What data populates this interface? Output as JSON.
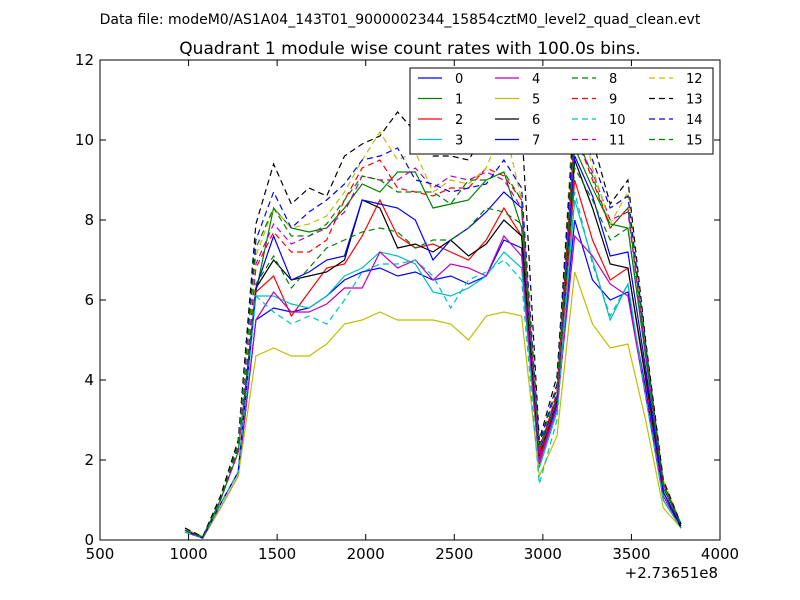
{
  "header": {
    "datafile": "Data file: modeM0/AS1A04_143T01_9000002344_15854cztM0_level2_quad_clean.evt",
    "title": "Quadrant 1 module wise count rates with 100.0s bins."
  },
  "chart_data": {
    "type": "line",
    "title": "Quadrant 1 module wise count rates with 100.0s bins.",
    "xlabel": "",
    "ylabel": "",
    "x_offset_label": "+2.73651e8",
    "xlim": [
      500,
      4000
    ],
    "ylim": [
      0,
      12
    ],
    "xticks": [
      500,
      1000,
      1500,
      2000,
      2500,
      3000,
      3500,
      4000
    ],
    "yticks": [
      0,
      2,
      4,
      6,
      8,
      10,
      12
    ],
    "grid": false,
    "legend": {
      "placement": "top-right",
      "columns": 4
    },
    "x": [
      980,
      1080,
      1180,
      1280,
      1380,
      1480,
      1580,
      1680,
      1780,
      1880,
      1980,
      2080,
      2180,
      2280,
      2380,
      2480,
      2580,
      2680,
      2780,
      2880,
      2980,
      3080,
      3180,
      3280,
      3380,
      3480,
      3580,
      3680,
      3780
    ],
    "series": [
      {
        "name": "0",
        "color": "#0000ff",
        "dash": "solid",
        "values": [
          0.2,
          0.05,
          0.8,
          1.6,
          5.5,
          5.8,
          5.7,
          5.8,
          6.1,
          6.5,
          6.7,
          6.8,
          6.6,
          6.7,
          6.5,
          6.6,
          6.4,
          6.6,
          7.5,
          7.3,
          2.0,
          3.4,
          8.0,
          6.5,
          6.0,
          6.2,
          3.8,
          1.0,
          0.3
        ]
      },
      {
        "name": "1",
        "color": "#008000",
        "dash": "solid",
        "values": [
          0.25,
          0.08,
          1.0,
          2.2,
          6.2,
          8.3,
          7.8,
          7.7,
          7.8,
          8.3,
          8.9,
          8.7,
          9.2,
          9.2,
          8.3,
          8.4,
          8.5,
          9.0,
          9.2,
          7.8,
          2.3,
          3.6,
          9.8,
          8.8,
          7.9,
          7.8,
          4.6,
          1.3,
          0.4
        ]
      },
      {
        "name": "2",
        "color": "#ff0000",
        "dash": "solid",
        "values": [
          0.2,
          0.05,
          0.9,
          1.7,
          6.2,
          6.6,
          5.6,
          6.2,
          6.8,
          6.9,
          7.6,
          8.5,
          7.6,
          7.3,
          7.4,
          7.2,
          7.0,
          7.5,
          8.3,
          7.6,
          2.0,
          3.5,
          9.0,
          7.5,
          6.5,
          6.8,
          4.0,
          1.2,
          0.3
        ]
      },
      {
        "name": "3",
        "color": "#00bfbf",
        "dash": "solid",
        "values": [
          0.2,
          0.05,
          0.8,
          1.6,
          6.1,
          6.1,
          5.9,
          5.8,
          6.1,
          6.6,
          6.8,
          7.2,
          7.1,
          6.9,
          6.2,
          6.1,
          6.3,
          6.6,
          7.2,
          6.8,
          1.8,
          3.2,
          8.5,
          7.0,
          5.5,
          6.4,
          3.6,
          1.0,
          0.3
        ]
      },
      {
        "name": "4",
        "color": "#bf00bf",
        "dash": "solid",
        "values": [
          0.2,
          0.05,
          0.8,
          1.6,
          5.5,
          6.2,
          5.7,
          5.7,
          5.9,
          6.3,
          6.3,
          7.2,
          6.8,
          7.0,
          6.5,
          6.9,
          6.8,
          6.6,
          7.6,
          7.1,
          1.9,
          3.3,
          7.6,
          7.1,
          6.4,
          6.1,
          3.6,
          1.1,
          0.3
        ]
      },
      {
        "name": "5",
        "color": "#bfbf00",
        "dash": "solid",
        "values": [
          0.3,
          0.05,
          0.8,
          1.6,
          4.6,
          4.8,
          4.6,
          4.6,
          4.9,
          5.4,
          5.5,
          5.7,
          5.5,
          5.5,
          5.5,
          5.4,
          5.0,
          5.6,
          5.7,
          5.6,
          1.6,
          2.6,
          6.7,
          5.4,
          4.8,
          4.9,
          3.0,
          0.8,
          0.3
        ]
      },
      {
        "name": "6",
        "color": "#000000",
        "dash": "solid",
        "values": [
          0.25,
          0.05,
          0.9,
          1.7,
          6.3,
          7.0,
          6.5,
          6.6,
          6.7,
          7.0,
          8.5,
          8.3,
          7.3,
          7.4,
          7.2,
          7.5,
          7.1,
          7.4,
          8.0,
          7.6,
          2.1,
          3.5,
          9.5,
          8.3,
          6.9,
          6.8,
          4.1,
          1.2,
          0.3
        ]
      },
      {
        "name": "7",
        "color": "#0000ff",
        "dash": "solid",
        "values": [
          0.25,
          0.05,
          0.9,
          1.7,
          6.3,
          7.6,
          6.5,
          6.7,
          7.0,
          7.1,
          8.5,
          8.4,
          8.3,
          8.0,
          7.0,
          7.5,
          7.8,
          8.2,
          8.7,
          8.3,
          2.2,
          3.6,
          9.6,
          8.6,
          7.1,
          7.2,
          4.3,
          1.2,
          0.35
        ]
      },
      {
        "name": "8",
        "color": "#008000",
        "dash": "dashed",
        "values": [
          0.25,
          0.05,
          1.0,
          2.3,
          6.4,
          7.1,
          6.3,
          6.8,
          7.3,
          7.5,
          7.7,
          7.8,
          7.7,
          7.3,
          7.5,
          7.5,
          7.8,
          8.3,
          8.2,
          7.9,
          2.2,
          3.5,
          9.3,
          8.5,
          7.5,
          7.8,
          4.6,
          1.3,
          0.4
        ]
      },
      {
        "name": "9",
        "color": "#ff0000",
        "dash": "dashed",
        "values": [
          0.25,
          0.05,
          1.0,
          2.2,
          6.8,
          7.7,
          7.2,
          7.2,
          7.5,
          8.5,
          9.3,
          9.5,
          8.8,
          8.7,
          8.6,
          8.8,
          8.8,
          9.3,
          9.1,
          8.5,
          2.2,
          3.7,
          10.2,
          9.0,
          7.8,
          8.3,
          4.7,
          1.4,
          0.4
        ]
      },
      {
        "name": "10",
        "color": "#00bfbf",
        "dash": "dashed",
        "values": [
          0.2,
          0.05,
          0.9,
          1.7,
          6.1,
          5.7,
          5.4,
          5.6,
          5.4,
          6.0,
          6.7,
          6.9,
          6.9,
          7.0,
          6.6,
          5.8,
          6.5,
          6.7,
          7.0,
          6.5,
          1.4,
          3.0,
          8.7,
          6.9,
          5.6,
          6.4,
          3.6,
          1.0,
          0.3
        ]
      },
      {
        "name": "11",
        "color": "#bf00bf",
        "dash": "dashed",
        "values": [
          0.25,
          0.05,
          1.0,
          2.2,
          6.9,
          7.9,
          7.4,
          7.6,
          7.8,
          8.2,
          9.1,
          9.0,
          9.0,
          9.3,
          8.8,
          9.1,
          9.0,
          9.2,
          9.0,
          8.3,
          2.1,
          3.6,
          10.0,
          9.2,
          8.0,
          8.2,
          4.7,
          1.4,
          0.4
        ]
      },
      {
        "name": "12",
        "color": "#bfbf00",
        "dash": "dashed",
        "values": [
          0.25,
          0.05,
          1.1,
          2.4,
          7.1,
          8.3,
          7.8,
          7.9,
          8.1,
          8.7,
          9.5,
          10.2,
          9.5,
          9.7,
          8.7,
          9.0,
          8.9,
          9.3,
          10.4,
          8.5,
          2.3,
          3.9,
          11.3,
          9.3,
          7.9,
          8.7,
          4.9,
          1.5,
          0.4
        ]
      },
      {
        "name": "13",
        "color": "#000000",
        "dash": "dashed",
        "values": [
          0.3,
          0.08,
          1.1,
          2.5,
          7.9,
          9.4,
          8.4,
          8.8,
          8.6,
          9.6,
          9.9,
          10.1,
          10.7,
          10.2,
          9.6,
          9.6,
          9.5,
          10.2,
          10.5,
          10.4,
          2.5,
          4.1,
          10.8,
          10.0,
          8.4,
          9.0,
          5.0,
          1.5,
          0.4
        ]
      },
      {
        "name": "14",
        "color": "#0000ff",
        "dash": "dashed",
        "values": [
          0.25,
          0.05,
          1.0,
          2.4,
          7.5,
          8.7,
          7.8,
          8.2,
          8.5,
          8.9,
          9.5,
          9.6,
          9.8,
          9.0,
          8.9,
          8.7,
          8.8,
          8.9,
          9.5,
          8.8,
          2.4,
          3.9,
          10.6,
          9.5,
          8.3,
          8.6,
          4.9,
          1.4,
          0.4
        ]
      },
      {
        "name": "15",
        "color": "#008000",
        "dash": "dashed",
        "values": [
          0.25,
          0.05,
          1.0,
          2.4,
          7.3,
          8.3,
          7.6,
          7.6,
          7.9,
          8.5,
          9.1,
          9.0,
          8.7,
          8.7,
          8.7,
          8.4,
          9.0,
          9.0,
          9.2,
          8.5,
          2.3,
          3.8,
          10.2,
          9.1,
          7.8,
          8.3,
          4.8,
          1.4,
          0.4
        ]
      }
    ]
  }
}
